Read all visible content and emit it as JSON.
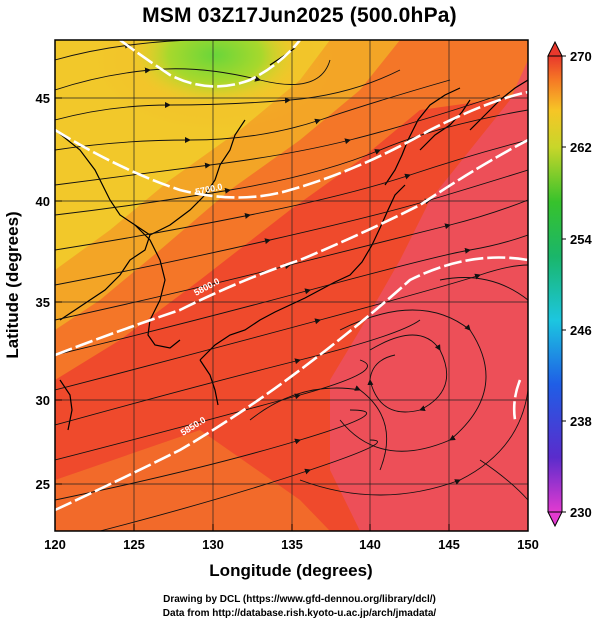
{
  "title": "MSM 03Z17Jun2025 (500.0hPa)",
  "x_axis": {
    "label": "Longitude (degrees)",
    "ticks": [
      "120",
      "125",
      "130",
      "135",
      "140",
      "145",
      "150"
    ]
  },
  "y_axis": {
    "label": "Latitude  (degrees)",
    "ticks": [
      "25",
      "30",
      "35",
      "40",
      "45"
    ]
  },
  "colorbar": {
    "ticks": [
      "270",
      "262",
      "254",
      "246",
      "238",
      "230"
    ],
    "range": [
      230,
      270
    ]
  },
  "contours": [
    {
      "label": "5700.0"
    },
    {
      "label": "5800.0"
    },
    {
      "label": "5850.0"
    }
  ],
  "credits": {
    "line1": "Drawing by DCL (https://www.gfd-dennou.org/library/dcl/)",
    "line2": "Data from http://database.rish.kyoto-u.ac.jp/arch/jmadata/"
  },
  "colors": {
    "warm_red": "#ee3b2c",
    "pink_red": "#ec4a60",
    "orange": "#f57a22",
    "yellow": "#f2cd22",
    "green": "#36c232",
    "contour": "#ffffff"
  }
}
